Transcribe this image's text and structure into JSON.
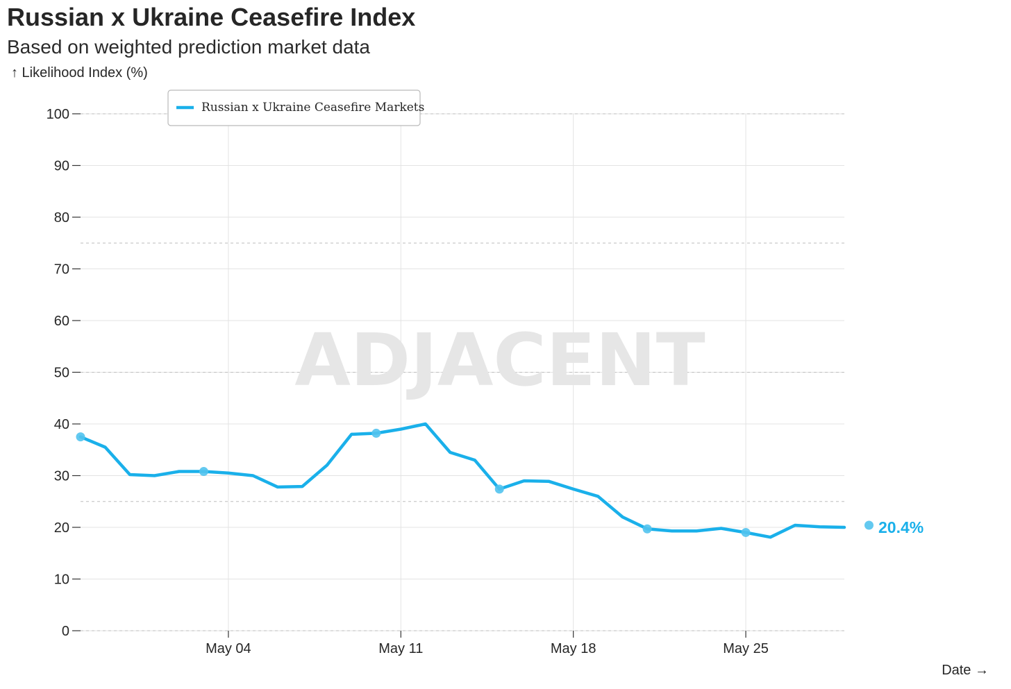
{
  "header": {
    "title": "Russian x Ukraine Ceasefire Index",
    "subtitle": "Based on weighted prediction market data"
  },
  "axes": {
    "y_label": "↑ Likelihood Index (%)",
    "x_label": "Date →"
  },
  "watermark": "ADJACENT",
  "end_label": "20.4%",
  "colors": {
    "line": "#1ab0ea",
    "marker": "#52c3ee",
    "end_label": "#1ab0ea",
    "grid": "#e3e3e3",
    "dashed_ref": "#bdbdbd"
  },
  "chart_data": {
    "type": "line",
    "title": "Russian x Ukraine Ceasefire Index",
    "subtitle": "Based on weighted prediction market data",
    "xlabel": "Date",
    "ylabel": "Likelihood Index (%)",
    "ylim": [
      0,
      100
    ],
    "xlim": [
      "2025-04-28",
      "2025-05-29"
    ],
    "yticks": [
      0,
      10,
      20,
      30,
      40,
      50,
      60,
      70,
      80,
      90,
      100
    ],
    "xticks": [
      {
        "date": "2025-05-04",
        "label": "May 04"
      },
      {
        "date": "2025-05-11",
        "label": "May 11"
      },
      {
        "date": "2025-05-18",
        "label": "May 18"
      },
      {
        "date": "2025-05-25",
        "label": "May 25"
      }
    ],
    "reference_lines": [
      0,
      25,
      50,
      75,
      100
    ],
    "grid": true,
    "legend": "top-left",
    "series": [
      {
        "name": "Russian x Ukraine Ceasefire Markets",
        "x": [
          "2025-04-28",
          "2025-04-29",
          "2025-04-30",
          "2025-05-01",
          "2025-05-02",
          "2025-05-03",
          "2025-05-04",
          "2025-05-05",
          "2025-05-06",
          "2025-05-07",
          "2025-05-08",
          "2025-05-09",
          "2025-05-10",
          "2025-05-11",
          "2025-05-12",
          "2025-05-13",
          "2025-05-14",
          "2025-05-15",
          "2025-05-16",
          "2025-05-17",
          "2025-05-18",
          "2025-05-19",
          "2025-05-20",
          "2025-05-21",
          "2025-05-22",
          "2025-05-23",
          "2025-05-24",
          "2025-05-25",
          "2025-05-26",
          "2025-05-27",
          "2025-05-28",
          "2025-05-29",
          "2025-05-30",
          "2025-05-31"
        ],
        "values": [
          37.5,
          35.5,
          30.2,
          30.0,
          30.8,
          30.8,
          30.5,
          30.0,
          27.8,
          27.9,
          32.0,
          38.0,
          38.2,
          39.0,
          40.0,
          34.5,
          33.0,
          27.4,
          29.0,
          28.9,
          27.4,
          26.0,
          22.0,
          19.7,
          19.3,
          19.3,
          19.8,
          19.0,
          18.1,
          20.4,
          20.1,
          20.0,
          20.4,
          20.4
        ],
        "markers": [
          "2025-04-28",
          "2025-05-03",
          "2025-05-10",
          "2025-05-15",
          "2025-05-21",
          "2025-05-25",
          "2025-05-30"
        ]
      }
    ]
  }
}
